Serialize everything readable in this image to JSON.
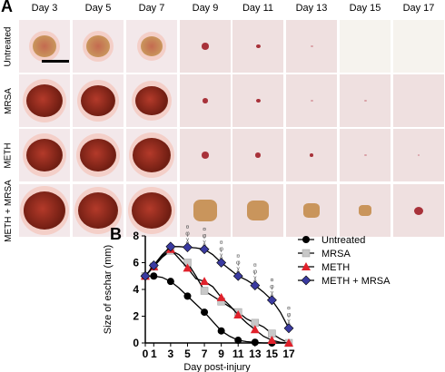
{
  "panel_a": {
    "label": "A",
    "days": [
      "Day 3",
      "Day 5",
      "Day 7",
      "Day 9",
      "Day 11",
      "Day 13",
      "Day 15",
      "Day 17"
    ],
    "rows": [
      "Untreated",
      "MRSA",
      "METH",
      "METH + MRSA"
    ],
    "colors": {
      "skin": "#efe0e0",
      "scab": "#b43a2a",
      "dark_scab": "#6e1d12",
      "tan_scab": "#c9955c",
      "halo": "#f4cfc8"
    }
  },
  "panel_b": {
    "label": "B",
    "chart_data": {
      "type": "line",
      "xlabel": "Day post-injury",
      "ylabel": "Size of eschar (mm)",
      "x": [
        0,
        1,
        2,
        3,
        4,
        5,
        6,
        7,
        8,
        9,
        10,
        11,
        12,
        13,
        14,
        15,
        16,
        17
      ],
      "xticks": [
        0,
        1,
        3,
        5,
        7,
        9,
        11,
        13,
        15,
        17
      ],
      "ylim": [
        0,
        8
      ],
      "yticks": [
        0,
        2,
        4,
        6,
        8
      ],
      "legend_position": "right",
      "series": [
        {
          "name": "Untreated",
          "marker": "circle",
          "color": "#000000",
          "values": [
            5,
            5,
            4.9,
            4.6,
            4.1,
            3.5,
            2.9,
            2.3,
            1.6,
            0.9,
            0.5,
            0.2,
            0.1,
            0.05,
            0,
            0,
            0,
            0
          ]
        },
        {
          "name": "MRSA",
          "marker": "square",
          "color": "#c8c8c8",
          "values": [
            5,
            5.7,
            6.4,
            6.9,
            6.6,
            6.0,
            5.0,
            3.9,
            3.5,
            3.1,
            2.7,
            2.3,
            1.8,
            1.5,
            1.2,
            0.7,
            0.3,
            0
          ]
        },
        {
          "name": "METH",
          "marker": "triangle",
          "color": "#e0212b",
          "values": [
            5,
            5.7,
            6.5,
            7.0,
            6.3,
            5.6,
            4.8,
            4.6,
            4.2,
            3.4,
            2.8,
            2.1,
            1.5,
            1.0,
            0.5,
            0.2,
            0.05,
            0
          ]
        },
        {
          "name": "METH + MRSA",
          "marker": "diamond",
          "color": "#3a3aa0",
          "values": [
            5,
            5.8,
            6.6,
            7.2,
            7.2,
            7.15,
            7.1,
            7.0,
            6.6,
            6.0,
            5.5,
            5.0,
            4.7,
            4.3,
            3.8,
            3.2,
            2.3,
            1.1
          ]
        }
      ],
      "annotations": [
        "χ",
        "φ",
        "¤"
      ]
    }
  }
}
